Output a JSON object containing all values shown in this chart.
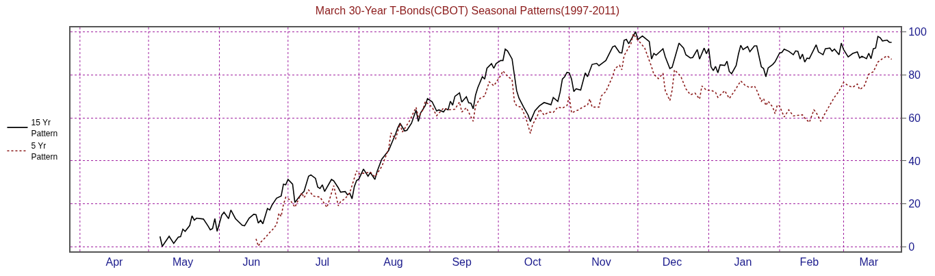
{
  "chart_data": {
    "type": "line",
    "title": "March 30-Year T-Bonds(CBOT) Seasonal Patterns(1997-2011)",
    "xlim": [
      "2010-03-28",
      "2011-03-26"
    ],
    "xticks": [
      {
        "value": "2010-04-01",
        "label": null
      },
      {
        "value": "2010-04-16",
        "label": "Apr"
      },
      {
        "value": "2010-05-01",
        "label": null
      },
      {
        "value": "2010-05-16",
        "label": "May"
      },
      {
        "value": "2010-06-01",
        "label": null
      },
      {
        "value": "2010-06-15",
        "label": "Jun"
      },
      {
        "value": "2010-07-01",
        "label": null
      },
      {
        "value": "2010-07-16",
        "label": "Jul"
      },
      {
        "value": "2010-08-01",
        "label": null
      },
      {
        "value": "2010-08-16",
        "label": "Aug"
      },
      {
        "value": "2010-09-01",
        "label": null
      },
      {
        "value": "2010-09-15",
        "label": "Sep"
      },
      {
        "value": "2010-10-01",
        "label": null
      },
      {
        "value": "2010-10-16",
        "label": "Oct"
      },
      {
        "value": "2010-11-01",
        "label": null
      },
      {
        "value": "2010-11-15",
        "label": "Nov"
      },
      {
        "value": "2010-12-01",
        "label": null
      },
      {
        "value": "2010-12-16",
        "label": "Dec"
      },
      {
        "value": "2011-01-01",
        "label": null
      },
      {
        "value": "2011-01-16",
        "label": "Jan"
      },
      {
        "value": "2011-02-01",
        "label": null
      },
      {
        "value": "2011-02-14",
        "label": "Feb"
      },
      {
        "value": "2011-03-01",
        "label": null
      },
      {
        "value": "2011-03-12",
        "label": "Mar"
      }
    ],
    "ylim": [
      -2,
      102
    ],
    "yticks": [
      0,
      20,
      40,
      60,
      80,
      100
    ],
    "grid": true,
    "legend": "left",
    "series": [
      {
        "name": "15 Yr\nPattern",
        "color": "#000000",
        "line_style": "solid",
        "x": [
          "2010-05-06",
          "2010-05-07",
          "2010-05-10",
          "2010-05-12",
          "2010-05-14",
          "2010-05-15",
          "2010-05-16",
          "2010-05-17",
          "2010-05-19",
          "2010-05-20",
          "2010-05-21",
          "2010-05-22",
          "2010-05-25",
          "2010-05-27",
          "2010-05-28",
          "2010-05-29",
          "2010-05-30",
          "2010-05-31",
          "2010-06-02",
          "2010-06-03",
          "2010-06-05",
          "2010-06-06",
          "2010-06-08",
          "2010-06-11",
          "2010-06-12",
          "2010-06-14",
          "2010-06-16",
          "2010-06-17",
          "2010-06-18",
          "2010-06-19",
          "2010-06-20",
          "2010-06-22",
          "2010-06-23",
          "2010-06-24",
          "2010-06-26",
          "2010-06-28",
          "2010-06-29",
          "2010-06-30",
          "2010-07-01",
          "2010-07-03",
          "2010-07-04",
          "2010-07-05",
          "2010-07-07",
          "2010-07-08",
          "2010-07-10",
          "2010-07-11",
          "2010-07-13",
          "2010-07-14",
          "2010-07-15",
          "2010-07-16",
          "2010-07-17",
          "2010-07-20",
          "2010-07-21",
          "2010-07-23",
          "2010-07-24",
          "2010-07-26",
          "2010-07-27",
          "2010-07-28",
          "2010-07-29",
          "2010-07-30",
          "2010-07-31",
          "2010-08-01",
          "2010-08-03",
          "2010-08-05",
          "2010-08-06",
          "2010-08-08",
          "2010-08-09",
          "2010-08-11",
          "2010-08-12",
          "2010-08-14",
          "2010-08-16",
          "2010-08-17",
          "2010-08-18",
          "2010-08-19",
          "2010-08-21",
          "2010-08-22",
          "2010-08-24",
          "2010-08-26",
          "2010-08-27",
          "2010-08-28",
          "2010-08-30",
          "2010-08-31",
          "2010-09-02",
          "2010-09-04",
          "2010-09-05",
          "2010-09-07",
          "2010-09-08",
          "2010-09-09",
          "2010-09-10",
          "2010-09-11",
          "2010-09-12",
          "2010-09-14",
          "2010-09-15",
          "2010-09-17",
          "2010-09-18",
          "2010-09-19",
          "2010-09-20",
          "2010-09-21",
          "2010-09-22",
          "2010-09-24",
          "2010-09-25",
          "2010-09-26",
          "2010-09-28",
          "2010-09-29",
          "2010-09-30",
          "2010-10-02",
          "2010-10-03",
          "2010-10-04",
          "2010-10-05",
          "2010-10-07",
          "2010-10-08",
          "2010-10-09",
          "2010-10-10",
          "2010-10-12",
          "2010-10-14",
          "2010-10-15",
          "2010-10-17",
          "2010-10-19",
          "2010-10-21",
          "2010-10-24",
          "2010-10-25",
          "2010-10-27",
          "2010-10-28",
          "2010-10-29",
          "2010-10-30",
          "2010-10-31",
          "2010-11-01",
          "2010-11-02",
          "2010-11-03",
          "2010-11-04",
          "2010-11-06",
          "2010-11-08",
          "2010-11-09",
          "2010-11-11",
          "2010-11-13",
          "2010-11-14",
          "2010-11-16",
          "2010-11-17",
          "2010-11-20",
          "2010-11-21",
          "2010-11-23",
          "2010-11-24",
          "2010-11-25",
          "2010-11-26",
          "2010-11-27",
          "2010-11-30",
          "2010-12-01",
          "2010-12-03",
          "2010-12-06",
          "2010-12-07",
          "2010-12-08",
          "2010-12-09",
          "2010-12-12",
          "2010-12-13",
          "2010-12-15",
          "2010-12-16",
          "2010-12-19",
          "2010-12-21",
          "2010-12-22",
          "2010-12-24",
          "2010-12-25",
          "2010-12-27",
          "2010-12-28",
          "2010-12-30",
          "2010-12-31",
          "2011-01-01",
          "2011-01-02",
          "2011-01-03",
          "2011-01-04",
          "2011-01-05",
          "2011-01-06",
          "2011-01-08",
          "2011-01-09",
          "2011-01-10",
          "2011-01-11",
          "2011-01-13",
          "2011-01-14",
          "2011-01-15",
          "2011-01-16",
          "2011-01-18",
          "2011-01-19",
          "2011-01-21",
          "2011-01-22",
          "2011-01-24",
          "2011-01-25",
          "2011-01-26",
          "2011-01-27",
          "2011-01-29",
          "2011-01-30",
          "2011-02-01",
          "2011-02-02",
          "2011-02-03",
          "2011-02-05",
          "2011-02-07",
          "2011-02-08",
          "2011-02-09",
          "2011-02-10",
          "2011-02-11",
          "2011-02-12",
          "2011-02-13",
          "2011-02-14",
          "2011-02-17",
          "2011-02-18",
          "2011-02-20",
          "2011-02-21",
          "2011-02-23",
          "2011-02-24",
          "2011-02-25",
          "2011-02-27",
          "2011-02-28",
          "2011-03-01",
          "2011-03-03",
          "2011-03-05",
          "2011-03-07",
          "2011-03-08",
          "2011-03-09",
          "2011-03-11",
          "2011-03-12",
          "2011-03-13",
          "2011-03-14",
          "2011-03-15",
          "2011-03-16",
          "2011-03-17",
          "2011-03-18",
          "2011-03-20",
          "2011-03-21",
          "2011-03-22"
        ],
        "values": [
          4.9,
          0.3,
          5,
          1.7,
          4.6,
          4.8,
          8.3,
          7.3,
          10,
          14.5,
          12.5,
          13.4,
          13,
          9.8,
          8,
          8.6,
          13.2,
          7.3,
          14.8,
          16.2,
          13.2,
          17.2,
          13.2,
          10.1,
          9.9,
          13.4,
          15.2,
          15,
          11.1,
          12.4,
          10.8,
          17.9,
          17.2,
          19.5,
          22.7,
          23.7,
          29.2,
          28.9,
          31.4,
          29.2,
          20.7,
          22.1,
          24.8,
          25.8,
          32.9,
          33.5,
          31.9,
          27.8,
          27.2,
          28.9,
          25.8,
          31.4,
          30.7,
          27.5,
          25.5,
          25.8,
          24.3,
          25,
          22.4,
          28.1,
          30.9,
          31.6,
          36.2,
          32.9,
          34.6,
          31.4,
          35.2,
          40.8,
          42.1,
          44.8,
          49.9,
          52.4,
          55.4,
          57.5,
          53.9,
          54.2,
          57.5,
          63.6,
          58.3,
          62.3,
          65.6,
          68.9,
          67.5,
          63.2,
          63.7,
          62.7,
          64.2,
          63.7,
          67.7,
          65.9,
          70,
          71.6,
          67.3,
          69.8,
          67,
          66.8,
          64.2,
          70.5,
          74,
          79.1,
          78,
          83,
          85.2,
          83,
          85.2,
          86.6,
          86.6,
          91.9,
          91.1,
          87.3,
          79.9,
          72.6,
          69.2,
          65.1,
          61.3,
          58.3,
          63.3,
          65.6,
          67.1,
          66.1,
          69.4,
          67.6,
          71.9,
          78,
          79.1,
          81.1,
          80.9,
          78,
          72.2,
          73.5,
          72.9,
          80.9,
          79.1,
          84.8,
          85.3,
          84.2,
          85.8,
          86.6,
          93,
          93.4,
          90.3,
          90.1,
          96,
          96.4,
          94.4,
          100,
          96.4,
          98,
          95.4,
          87.3,
          89.9,
          89.1,
          92.1,
          88.3,
          82.9,
          83.5,
          94.7,
          92.4,
          89.3,
          87.8,
          88,
          91.7,
          87.3,
          92.4,
          89.8,
          92.1,
          83.7,
          81.9,
          83.9,
          80.9,
          84.6,
          84.3,
          86.3,
          81.5,
          80.5,
          84.3,
          89.6,
          93.7,
          91.7,
          93.1,
          90.7,
          93.4,
          93.4,
          83.7,
          82.9,
          79.1,
          83.2,
          84.8,
          86,
          90.1,
          90.4,
          91.9,
          90.9,
          89.3,
          91.1,
          90.9,
          87.3,
          89.6,
          85.9,
          87.7,
          87.5,
          93.9,
          90.6,
          89.3,
          92.1,
          92.4,
          90.9,
          91.9,
          89.3,
          94.7,
          91.7,
          88.3,
          89.9,
          90.6,
          87.8,
          88.6,
          87.5,
          90,
          87.5,
          92.1,
          92.4,
          97.8,
          97.2,
          95.7,
          96.1,
          95.1,
          95.1
        ]
      },
      {
        "name": "5 Yr\nPattern",
        "color": "#8b1a1a",
        "line_style": "dotted",
        "x": [
          "2010-06-17",
          "2010-06-18",
          "2010-06-19",
          "2010-06-21",
          "2010-06-23",
          "2010-06-24",
          "2010-06-26",
          "2010-06-27",
          "2010-06-28",
          "2010-06-29",
          "2010-06-30",
          "2010-07-02",
          "2010-07-04",
          "2010-07-05",
          "2010-07-07",
          "2010-07-08",
          "2010-07-10",
          "2010-07-12",
          "2010-07-15",
          "2010-07-18",
          "2010-07-19",
          "2010-07-21",
          "2010-07-23",
          "2010-07-24",
          "2010-07-26",
          "2010-07-28",
          "2010-07-31",
          "2010-08-01",
          "2010-08-03",
          "2010-08-06",
          "2010-08-08",
          "2010-08-11",
          "2010-08-14",
          "2010-08-15",
          "2010-08-17",
          "2010-08-19",
          "2010-08-20",
          "2010-08-23",
          "2010-08-26",
          "2010-08-27",
          "2010-08-29",
          "2010-08-30",
          "2010-09-02",
          "2010-09-04",
          "2010-09-07",
          "2010-09-09",
          "2010-09-12",
          "2010-09-14",
          "2010-09-15",
          "2010-09-17",
          "2010-09-20",
          "2010-09-21",
          "2010-09-23",
          "2010-09-25",
          "2010-09-27",
          "2010-09-29",
          "2010-10-02",
          "2010-10-03",
          "2010-10-05",
          "2010-10-07",
          "2010-10-08",
          "2010-10-09",
          "2010-10-11",
          "2010-10-13",
          "2010-10-15",
          "2010-10-16",
          "2010-10-18",
          "2010-10-19",
          "2010-10-21",
          "2010-10-23",
          "2010-10-25",
          "2010-10-27",
          "2010-10-29",
          "2010-10-31",
          "2010-11-01",
          "2010-11-02",
          "2010-11-05",
          "2010-11-07",
          "2010-11-09",
          "2010-11-10",
          "2010-11-11",
          "2010-11-14",
          "2010-11-15",
          "2010-11-17",
          "2010-11-20",
          "2010-11-21",
          "2010-11-23",
          "2010-11-24",
          "2010-11-25",
          "2010-11-28",
          "2010-11-29",
          "2010-12-01",
          "2010-12-02",
          "2010-12-04",
          "2010-12-07",
          "2010-12-08",
          "2010-12-10",
          "2010-12-12",
          "2010-12-13",
          "2010-12-15",
          "2010-12-16",
          "2010-12-17",
          "2010-12-19",
          "2010-12-20",
          "2010-12-22",
          "2010-12-24",
          "2010-12-26",
          "2010-12-28",
          "2010-12-29",
          "2010-12-31",
          "2011-01-02",
          "2011-01-04",
          "2011-01-05",
          "2011-01-08",
          "2011-01-10",
          "2011-01-12",
          "2011-01-15",
          "2011-01-17",
          "2011-01-19",
          "2011-01-21",
          "2011-01-22",
          "2011-01-24",
          "2011-01-25",
          "2011-01-26",
          "2011-01-27",
          "2011-01-29",
          "2011-01-30",
          "2011-01-31",
          "2011-02-01",
          "2011-02-03",
          "2011-02-05",
          "2011-02-07",
          "2011-02-11",
          "2011-02-12",
          "2011-02-14",
          "2011-02-16",
          "2011-02-17",
          "2011-02-19",
          "2011-02-20",
          "2011-02-23",
          "2011-02-25",
          "2011-02-27",
          "2011-03-01",
          "2011-03-03",
          "2011-03-05",
          "2011-03-07",
          "2011-03-08",
          "2011-03-10",
          "2011-03-12",
          "2011-03-14",
          "2011-03-16",
          "2011-03-18",
          "2011-03-20",
          "2011-03-22"
        ],
        "values": [
          3.8,
          0.4,
          2.2,
          4.3,
          6.8,
          7.8,
          10.4,
          15.7,
          14.2,
          19.8,
          23.1,
          21.8,
          18.5,
          20.8,
          25.2,
          22.9,
          26.5,
          23.7,
          23.2,
          18.4,
          21.6,
          28.5,
          19.1,
          21.1,
          22.5,
          25.2,
          35.4,
          33.9,
          34.3,
          34.8,
          32.6,
          37.4,
          45.5,
          53,
          50.1,
          57.3,
          53.4,
          58.3,
          64.9,
          60.4,
          63.7,
          67.6,
          65,
          61,
          64.5,
          63.7,
          64,
          67.4,
          62.7,
          64.7,
          58.4,
          65.5,
          69.1,
          70.1,
          76.7,
          74.9,
          79.6,
          81.8,
          79.3,
          77.7,
          67.6,
          65.5,
          65,
          60,
          52.8,
          56.9,
          60.7,
          64,
          61.3,
          62.7,
          62.5,
          65,
          64.5,
          65.7,
          70.1,
          62.3,
          63.7,
          65,
          66,
          68.8,
          65,
          65,
          70.1,
          72.2,
          79.3,
          83,
          84.4,
          82.3,
          88.9,
          94.5,
          99,
          96,
          95,
          92.4,
          83.7,
          80.2,
          78.2,
          80.7,
          72.6,
          68,
          72.8,
          82.3,
          80.2,
          78.7,
          73.5,
          70.7,
          71.5,
          68.7,
          74.8,
          72.8,
          72.8,
          71.8,
          69.5,
          72.6,
          69,
          72,
          77.1,
          75,
          74,
          74.8,
          72.8,
          67.7,
          69,
          65.7,
          67.7,
          65,
          61.9,
          66,
          65.5,
          60.4,
          63.7,
          60.9,
          61.4,
          59.9,
          57.9,
          63.7,
          62.5,
          58.4,
          60.4,
          66,
          69.6,
          72.4,
          76.5,
          74.9,
          74.2,
          75.7,
          73.1,
          74.7,
          80.3,
          81.4,
          85.9,
          87.5,
          88.8,
          87.2
        ]
      }
    ]
  }
}
